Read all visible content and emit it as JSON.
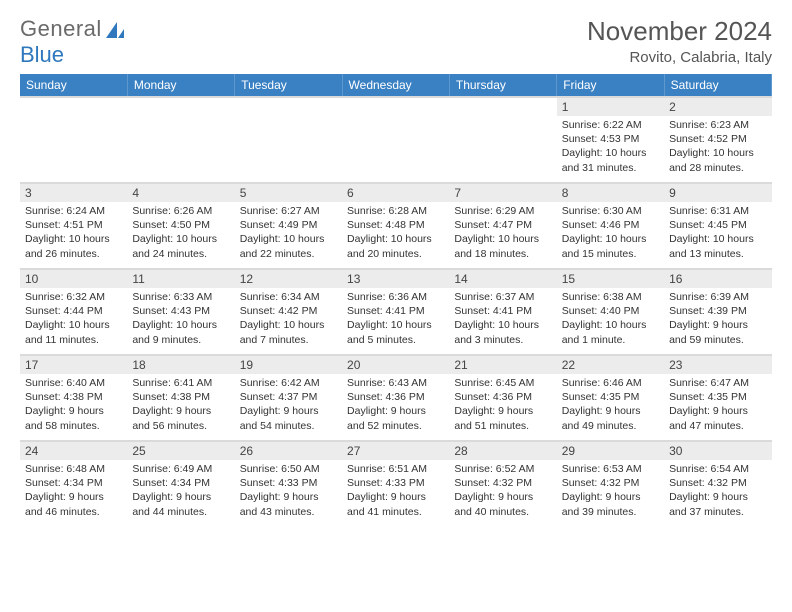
{
  "brand": {
    "name_gray": "General",
    "name_blue": "Blue"
  },
  "title": "November 2024",
  "location": "Rovito, Calabria, Italy",
  "colors": {
    "header_bg": "#3a81c4",
    "header_text": "#ffffff",
    "daynum_bg": "#ececec",
    "divider": "#dadada",
    "body_text": "#333333",
    "brand_gray": "#6a6a6a",
    "brand_blue": "#2f78bd"
  },
  "weekdays": [
    "Sunday",
    "Monday",
    "Tuesday",
    "Wednesday",
    "Thursday",
    "Friday",
    "Saturday"
  ],
  "grid": {
    "leading_blanks": 5,
    "days": [
      {
        "n": 1,
        "sunrise": "6:22 AM",
        "sunset": "4:53 PM",
        "daylight": "10 hours and 31 minutes."
      },
      {
        "n": 2,
        "sunrise": "6:23 AM",
        "sunset": "4:52 PM",
        "daylight": "10 hours and 28 minutes."
      },
      {
        "n": 3,
        "sunrise": "6:24 AM",
        "sunset": "4:51 PM",
        "daylight": "10 hours and 26 minutes."
      },
      {
        "n": 4,
        "sunrise": "6:26 AM",
        "sunset": "4:50 PM",
        "daylight": "10 hours and 24 minutes."
      },
      {
        "n": 5,
        "sunrise": "6:27 AM",
        "sunset": "4:49 PM",
        "daylight": "10 hours and 22 minutes."
      },
      {
        "n": 6,
        "sunrise": "6:28 AM",
        "sunset": "4:48 PM",
        "daylight": "10 hours and 20 minutes."
      },
      {
        "n": 7,
        "sunrise": "6:29 AM",
        "sunset": "4:47 PM",
        "daylight": "10 hours and 18 minutes."
      },
      {
        "n": 8,
        "sunrise": "6:30 AM",
        "sunset": "4:46 PM",
        "daylight": "10 hours and 15 minutes."
      },
      {
        "n": 9,
        "sunrise": "6:31 AM",
        "sunset": "4:45 PM",
        "daylight": "10 hours and 13 minutes."
      },
      {
        "n": 10,
        "sunrise": "6:32 AM",
        "sunset": "4:44 PM",
        "daylight": "10 hours and 11 minutes."
      },
      {
        "n": 11,
        "sunrise": "6:33 AM",
        "sunset": "4:43 PM",
        "daylight": "10 hours and 9 minutes."
      },
      {
        "n": 12,
        "sunrise": "6:34 AM",
        "sunset": "4:42 PM",
        "daylight": "10 hours and 7 minutes."
      },
      {
        "n": 13,
        "sunrise": "6:36 AM",
        "sunset": "4:41 PM",
        "daylight": "10 hours and 5 minutes."
      },
      {
        "n": 14,
        "sunrise": "6:37 AM",
        "sunset": "4:41 PM",
        "daylight": "10 hours and 3 minutes."
      },
      {
        "n": 15,
        "sunrise": "6:38 AM",
        "sunset": "4:40 PM",
        "daylight": "10 hours and 1 minute."
      },
      {
        "n": 16,
        "sunrise": "6:39 AM",
        "sunset": "4:39 PM",
        "daylight": "9 hours and 59 minutes."
      },
      {
        "n": 17,
        "sunrise": "6:40 AM",
        "sunset": "4:38 PM",
        "daylight": "9 hours and 58 minutes."
      },
      {
        "n": 18,
        "sunrise": "6:41 AM",
        "sunset": "4:38 PM",
        "daylight": "9 hours and 56 minutes."
      },
      {
        "n": 19,
        "sunrise": "6:42 AM",
        "sunset": "4:37 PM",
        "daylight": "9 hours and 54 minutes."
      },
      {
        "n": 20,
        "sunrise": "6:43 AM",
        "sunset": "4:36 PM",
        "daylight": "9 hours and 52 minutes."
      },
      {
        "n": 21,
        "sunrise": "6:45 AM",
        "sunset": "4:36 PM",
        "daylight": "9 hours and 51 minutes."
      },
      {
        "n": 22,
        "sunrise": "6:46 AM",
        "sunset": "4:35 PM",
        "daylight": "9 hours and 49 minutes."
      },
      {
        "n": 23,
        "sunrise": "6:47 AM",
        "sunset": "4:35 PM",
        "daylight": "9 hours and 47 minutes."
      },
      {
        "n": 24,
        "sunrise": "6:48 AM",
        "sunset": "4:34 PM",
        "daylight": "9 hours and 46 minutes."
      },
      {
        "n": 25,
        "sunrise": "6:49 AM",
        "sunset": "4:34 PM",
        "daylight": "9 hours and 44 minutes."
      },
      {
        "n": 26,
        "sunrise": "6:50 AM",
        "sunset": "4:33 PM",
        "daylight": "9 hours and 43 minutes."
      },
      {
        "n": 27,
        "sunrise": "6:51 AM",
        "sunset": "4:33 PM",
        "daylight": "9 hours and 41 minutes."
      },
      {
        "n": 28,
        "sunrise": "6:52 AM",
        "sunset": "4:32 PM",
        "daylight": "9 hours and 40 minutes."
      },
      {
        "n": 29,
        "sunrise": "6:53 AM",
        "sunset": "4:32 PM",
        "daylight": "9 hours and 39 minutes."
      },
      {
        "n": 30,
        "sunrise": "6:54 AM",
        "sunset": "4:32 PM",
        "daylight": "9 hours and 37 minutes."
      }
    ]
  },
  "labels": {
    "sunrise": "Sunrise:",
    "sunset": "Sunset:",
    "daylight": "Daylight:"
  }
}
